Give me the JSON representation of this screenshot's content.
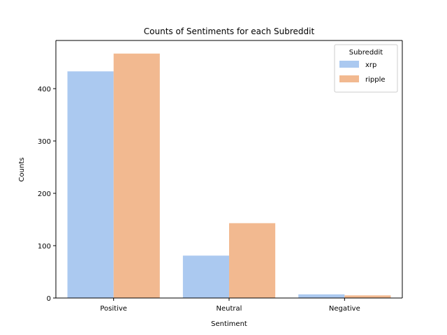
{
  "chart_data": {
    "type": "bar",
    "title": "Counts of Sentiments for each Subreddit",
    "xlabel": "Sentiment",
    "ylabel": "Counts",
    "categories": [
      "Positive",
      "Neutral",
      "Negative"
    ],
    "series": [
      {
        "name": "xrp",
        "values": [
          433,
          81,
          7
        ],
        "color": "#abc9f0"
      },
      {
        "name": "ripple",
        "values": [
          467,
          143,
          5
        ],
        "color": "#f2b990"
      }
    ],
    "ylim": [
      0,
      492
    ],
    "yticks": [
      0,
      100,
      200,
      300,
      400
    ],
    "legend": {
      "title": "Subreddit",
      "placement": "top-right"
    },
    "grid": false
  }
}
